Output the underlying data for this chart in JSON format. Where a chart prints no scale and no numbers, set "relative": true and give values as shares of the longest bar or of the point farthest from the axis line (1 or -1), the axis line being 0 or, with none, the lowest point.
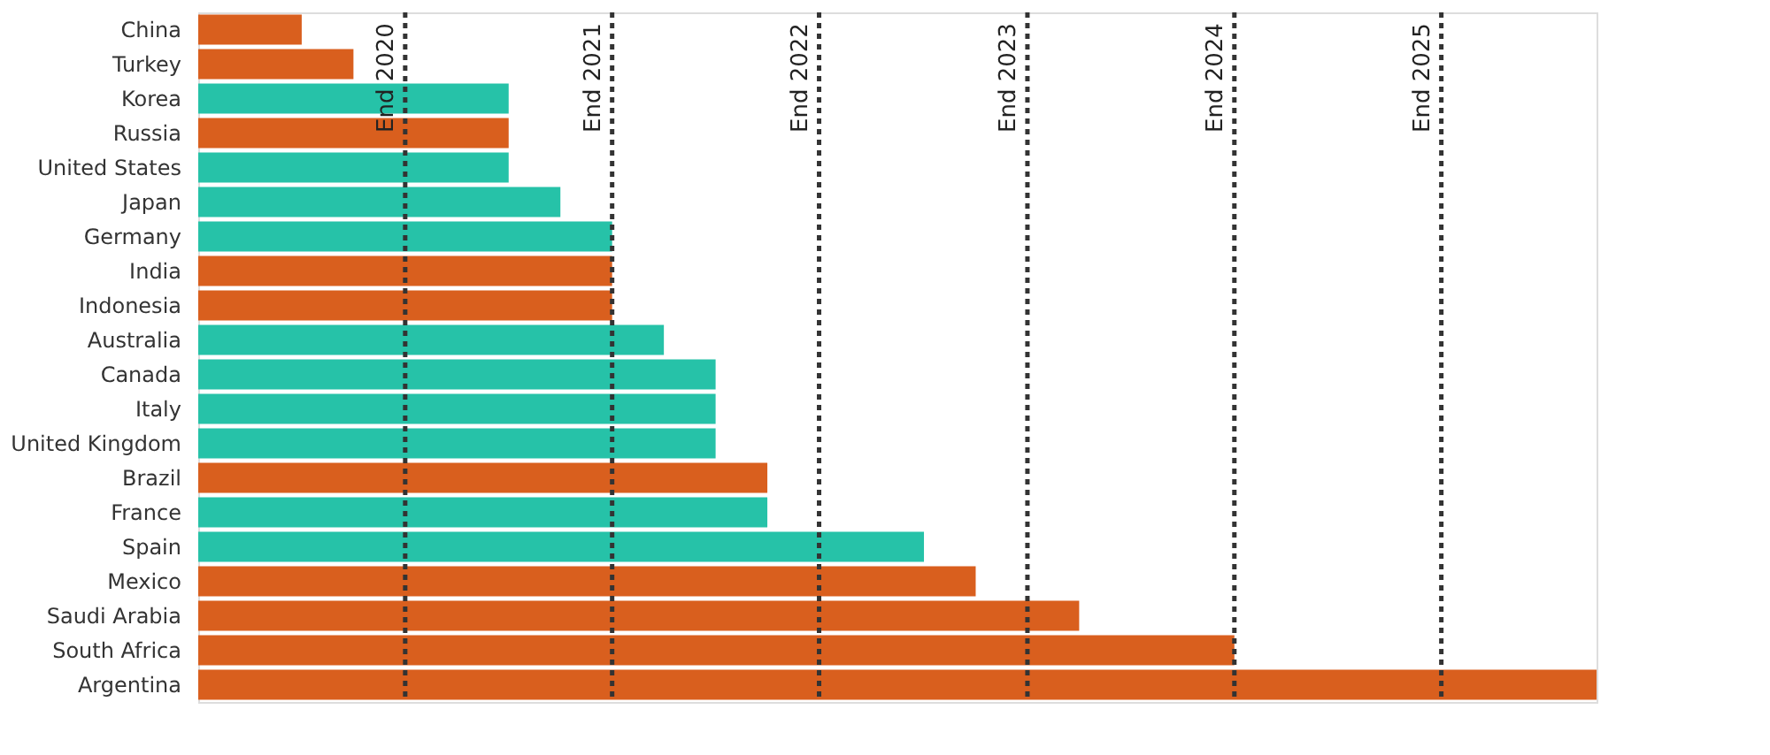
{
  "chart_data": {
    "type": "bar",
    "orientation": "horizontal",
    "relative": true,
    "categories": [
      "China",
      "Turkey",
      "Korea",
      "Russia",
      "United States",
      "Japan",
      "Germany",
      "India",
      "Indonesia",
      "Australia",
      "Canada",
      "Italy",
      "United Kingdom",
      "Brazil",
      "France",
      "Spain",
      "Mexico",
      "Saudi Arabia",
      "South Africa",
      "Argentina"
    ],
    "values": [
      0.074,
      0.111,
      0.222,
      0.222,
      0.222,
      0.259,
      0.296,
      0.296,
      0.296,
      0.333,
      0.37,
      0.37,
      0.37,
      0.407,
      0.407,
      0.519,
      0.556,
      0.63,
      0.741,
      1
    ],
    "colors": [
      "#d95f1e",
      "#d95f1e",
      "#26c2a8",
      "#d95f1e",
      "#26c2a8",
      "#26c2a8",
      "#26c2a8",
      "#d95f1e",
      "#d95f1e",
      "#26c2a8",
      "#26c2a8",
      "#26c2a8",
      "#26c2a8",
      "#d95f1e",
      "#26c2a8",
      "#26c2a8",
      "#d95f1e",
      "#d95f1e",
      "#d95f1e",
      "#d95f1e"
    ],
    "ref_lines": [
      {
        "axis": "x",
        "value": 0.148,
        "label": "End 2020",
        "color": "#333333",
        "line_style": "dotted"
      },
      {
        "axis": "x",
        "value": 0.296,
        "label": "End 2021",
        "color": "#333333",
        "line_style": "dotted"
      },
      {
        "axis": "x",
        "value": 0.444,
        "label": "End 2022",
        "color": "#333333",
        "line_style": "dotted"
      },
      {
        "axis": "x",
        "value": 0.593,
        "label": "End 2023",
        "color": "#333333",
        "line_style": "dotted"
      },
      {
        "axis": "x",
        "value": 0.741,
        "label": "End 2024",
        "color": "#333333",
        "line_style": "dotted"
      },
      {
        "axis": "x",
        "value": 0.889,
        "label": "End 2025",
        "color": "#333333",
        "line_style": "dotted"
      }
    ],
    "grid": false
  }
}
